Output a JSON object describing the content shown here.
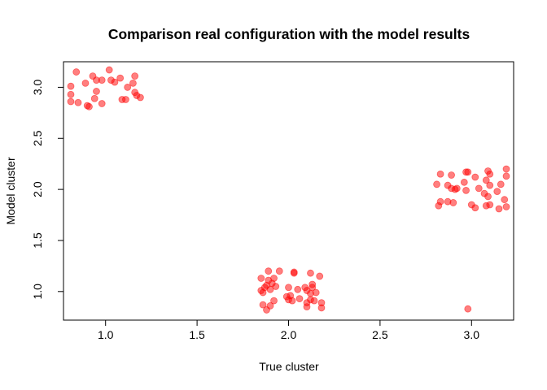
{
  "chart_data": {
    "type": "scatter",
    "title": "Comparison real configuration with the model results",
    "xlabel": "True cluster",
    "ylabel": "Model cluster",
    "xlim": [
      0.77,
      3.23
    ],
    "ylim": [
      0.72,
      3.25
    ],
    "xticks": [
      "1.0",
      "1.5",
      "2.0",
      "2.5",
      "3.0"
    ],
    "yticks": [
      "1.0",
      "1.5",
      "2.0",
      "2.5",
      "3.0"
    ],
    "point_color": "#ff0000",
    "point_opacity": 0.5,
    "grid": false,
    "legend": "none",
    "series": [
      {
        "points": [
          [
            0.84,
            3.15
          ],
          [
            1.02,
            3.17
          ],
          [
            1.16,
            3.11
          ],
          [
            0.93,
            3.11
          ],
          [
            1.08,
            3.09
          ],
          [
            0.95,
            3.07
          ],
          [
            0.98,
            3.07
          ],
          [
            1.03,
            3.07
          ],
          [
            0.89,
            3.04
          ],
          [
            1.15,
            3.04
          ],
          [
            1.05,
            3.05
          ],
          [
            0.81,
            3.01
          ],
          [
            1.12,
            3.0
          ],
          [
            0.95,
            2.96
          ],
          [
            1.16,
            2.95
          ],
          [
            1.17,
            2.92
          ],
          [
            0.81,
            2.93
          ],
          [
            1.19,
            2.9
          ],
          [
            0.94,
            2.89
          ],
          [
            1.09,
            2.88
          ],
          [
            1.11,
            2.88
          ],
          [
            0.81,
            2.86
          ],
          [
            0.85,
            2.85
          ],
          [
            0.98,
            2.84
          ],
          [
            0.9,
            2.82
          ],
          [
            0.91,
            2.81
          ]
        ]
      },
      {
        "points": [
          [
            1.89,
            1.2
          ],
          [
            1.95,
            1.2
          ],
          [
            2.03,
            1.19
          ],
          [
            2.03,
            1.18
          ],
          [
            2.12,
            1.18
          ],
          [
            1.85,
            1.13
          ],
          [
            2.17,
            1.15
          ],
          [
            1.92,
            1.13
          ],
          [
            1.89,
            1.11
          ],
          [
            1.91,
            1.08
          ],
          [
            2.13,
            1.07
          ],
          [
            1.88,
            1.06
          ],
          [
            1.93,
            1.05
          ],
          [
            2.0,
            1.04
          ],
          [
            2.09,
            1.04
          ],
          [
            1.87,
            1.04
          ],
          [
            2.13,
            1.04
          ],
          [
            1.9,
            1.02
          ],
          [
            1.85,
            1.01
          ],
          [
            1.86,
            0.99
          ],
          [
            2.05,
            1.02
          ],
          [
            2.1,
            1.01
          ],
          [
            2.15,
            0.99
          ],
          [
            2.12,
            0.98
          ],
          [
            2.01,
            0.96
          ],
          [
            1.99,
            0.95
          ],
          [
            2.06,
            0.93
          ],
          [
            2.0,
            0.92
          ],
          [
            1.92,
            0.91
          ],
          [
            2.12,
            0.92
          ],
          [
            2.02,
            0.91
          ],
          [
            2.14,
            0.91
          ],
          [
            2.1,
            0.89
          ],
          [
            2.18,
            0.89
          ],
          [
            1.86,
            0.87
          ],
          [
            1.9,
            0.86
          ],
          [
            2.1,
            0.85
          ],
          [
            2.18,
            0.84
          ],
          [
            1.88,
            0.82
          ]
        ]
      },
      {
        "points": [
          [
            3.19,
            2.2
          ],
          [
            3.09,
            2.18
          ],
          [
            2.97,
            2.17
          ],
          [
            2.98,
            2.17
          ],
          [
            2.83,
            2.15
          ],
          [
            2.89,
            2.14
          ],
          [
            3.1,
            2.15
          ],
          [
            3.19,
            2.13
          ],
          [
            3.02,
            2.12
          ],
          [
            3.08,
            2.09
          ],
          [
            2.96,
            2.07
          ],
          [
            3.16,
            2.05
          ],
          [
            2.81,
            2.05
          ],
          [
            2.87,
            2.04
          ],
          [
            3.1,
            2.04
          ],
          [
            2.89,
            2.01
          ],
          [
            2.92,
            2.01
          ],
          [
            3.04,
            2.01
          ],
          [
            2.91,
            2.0
          ],
          [
            2.97,
            1.99
          ],
          [
            3.14,
            1.98
          ],
          [
            3.07,
            1.96
          ],
          [
            3.09,
            1.93
          ],
          [
            3.18,
            1.9
          ],
          [
            2.87,
            1.88
          ],
          [
            2.83,
            1.88
          ],
          [
            2.9,
            1.87
          ],
          [
            3.0,
            1.85
          ],
          [
            3.1,
            1.85
          ],
          [
            3.08,
            1.84
          ],
          [
            2.82,
            1.84
          ],
          [
            3.02,
            1.82
          ],
          [
            3.19,
            1.83
          ],
          [
            3.15,
            1.81
          ],
          [
            2.98,
            0.83
          ]
        ]
      }
    ]
  }
}
